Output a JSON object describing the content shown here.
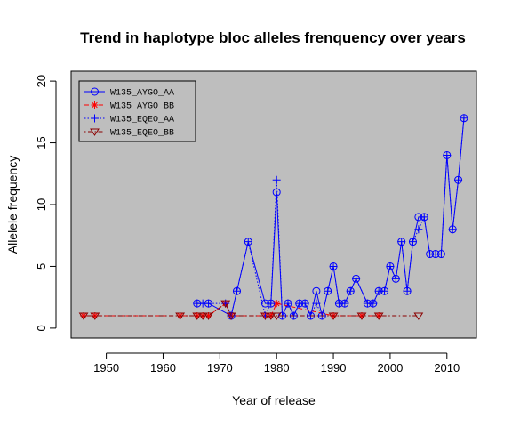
{
  "chart_data": {
    "type": "line",
    "title": "Trend in haplotype bloc alleles frenquency over years",
    "xlabel": "Year of release",
    "ylabel": "Allelele frequency",
    "xlim": [
      1943.8,
      2015.2
    ],
    "ylim": [
      -0.8,
      20.8
    ],
    "xticks": [
      1950,
      1960,
      1970,
      1980,
      1990,
      2000,
      2010
    ],
    "yticks": [
      0,
      5,
      10,
      15,
      20
    ],
    "background": "#bebebe",
    "legend_position": "top-left",
    "series": [
      {
        "name": "W135_AYGO_AA",
        "color": "#0000ff",
        "marker": "circle",
        "line": "solid",
        "x": [
          1966,
          1968,
          1972,
          1973,
          1975,
          1978,
          1979,
          1980,
          1981,
          1982,
          1983,
          1984,
          1985,
          1986,
          1987,
          1988,
          1989,
          1990,
          1991,
          1992,
          1993,
          1994,
          1996,
          1997,
          1998,
          1999,
          2000,
          2001,
          2002,
          2003,
          2004,
          2005,
          2006,
          2007,
          2008,
          2009,
          2010,
          2011,
          2012,
          2013
        ],
        "y": [
          2,
          2,
          1,
          3,
          7,
          2,
          2,
          11,
          1,
          2,
          1,
          2,
          2,
          1,
          3,
          1,
          3,
          5,
          2,
          2,
          3,
          4,
          2,
          2,
          3,
          3,
          5,
          4,
          7,
          3,
          7,
          9,
          9,
          6,
          6,
          6,
          14,
          8,
          12,
          17
        ]
      },
      {
        "name": "W135_AYGO_BB",
        "color": "#ff0000",
        "marker": "asterisk",
        "line": "dashed",
        "x": [
          1946,
          1948,
          1963,
          1966,
          1967,
          1968,
          1971,
          1972,
          1978,
          1979,
          1980,
          1990,
          1995,
          1998
        ],
        "y": [
          1,
          1,
          1,
          1,
          1,
          1,
          2,
          1,
          1,
          1,
          2,
          1,
          1,
          1
        ]
      },
      {
        "name": "W135_EQEO_AA",
        "color": "#0000ff",
        "marker": "plus",
        "line": "dotted",
        "x": [
          1966,
          1967,
          1968,
          1971,
          1972,
          1973,
          1975,
          1978,
          1979,
          1980,
          1981,
          1982,
          1983,
          1984,
          1985,
          1986,
          1987,
          1988,
          1989,
          1990,
          1991,
          1992,
          1993,
          1994,
          1996,
          1997,
          1998,
          1999,
          2000,
          2001,
          2002,
          2003,
          2004,
          2005,
          2006,
          2007,
          2008,
          2009,
          2010,
          2011,
          2012,
          2013
        ],
        "y": [
          2,
          2,
          2,
          2,
          1,
          3,
          7,
          1,
          2,
          12,
          1,
          2,
          1,
          2,
          2,
          1,
          2,
          1,
          3,
          5,
          2,
          2,
          3,
          4,
          2,
          2,
          3,
          3,
          5,
          4,
          7,
          3,
          7,
          8,
          9,
          6,
          6,
          6,
          14,
          8,
          12,
          17
        ]
      },
      {
        "name": "W135_EQEO_BB",
        "color": "#8b0000",
        "marker": "triangle-down",
        "line": "dotdash",
        "x": [
          1946,
          1948,
          1963,
          1966,
          1967,
          1968,
          1971,
          1972,
          1978,
          1979,
          1980,
          1990,
          1995,
          1998,
          2005
        ],
        "y": [
          1,
          1,
          1,
          1,
          1,
          1,
          2,
          1,
          1,
          1,
          1,
          1,
          1,
          1,
          1
        ]
      }
    ]
  }
}
